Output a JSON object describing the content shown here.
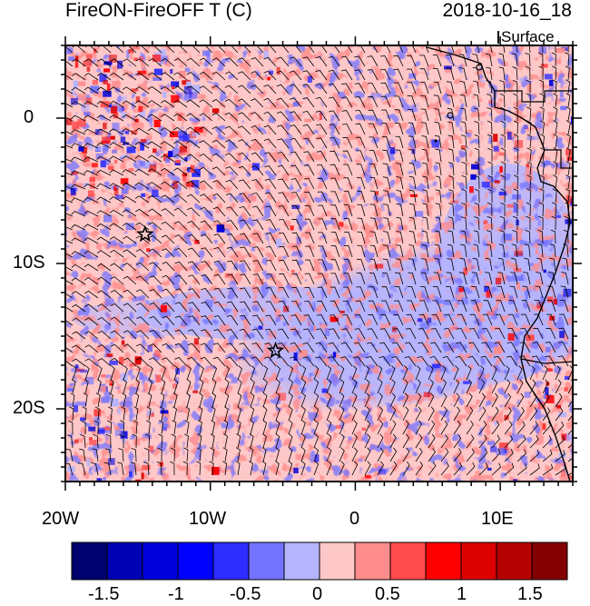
{
  "title": {
    "left": "FireON-FireOFF T (C)",
    "right": "2018-10-16_18",
    "level": "Surface"
  },
  "axes": {
    "x_ticks": [
      "20W",
      "10W",
      "0",
      "10E"
    ],
    "y_ticks": [
      "0",
      "10S",
      "20S"
    ],
    "lon_range": [
      -20,
      15
    ],
    "lat_range": [
      -25,
      5
    ]
  },
  "colorbar": {
    "labels": [
      "-1.5",
      "-1",
      "-0.5",
      "0",
      "0.5",
      "1",
      "1.5"
    ],
    "colors": [
      "#00006e",
      "#0000b4",
      "#0000dc",
      "#0000ff",
      "#2d2dff",
      "#7373ff",
      "#b4b4ff",
      "#ffc8c8",
      "#ff8c8c",
      "#ff4b4b",
      "#ff0000",
      "#dc0000",
      "#b40000",
      "#820000"
    ]
  },
  "markers": [
    {
      "name": "star-1",
      "lon": -14.5,
      "lat": -8
    },
    {
      "name": "star-2",
      "lon": -5.5,
      "lat": -16
    }
  ]
}
